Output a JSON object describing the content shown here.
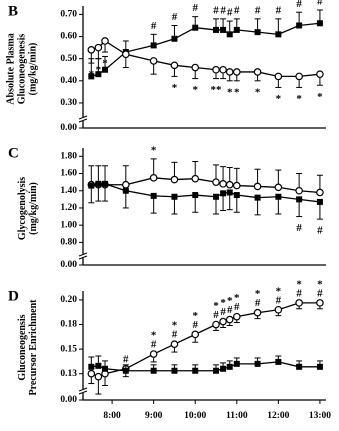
{
  "chart_data": [
    {
      "type": "line",
      "panel": "B",
      "ylabel": [
        "Absolute Plasma",
        "Gluconeogenesis",
        "(mg/kg/min)"
      ],
      "x": [
        7.5,
        7.67,
        7.83,
        8.33,
        9.0,
        9.5,
        10.0,
        10.5,
        10.67,
        10.83,
        11.0,
        11.5,
        12.0,
        12.5,
        13.0
      ],
      "xlim": [
        7.3,
        13.05
      ],
      "ylim": [
        0,
        0.72
      ],
      "axis_break": true,
      "yticks": [
        {
          "value": 0,
          "label": "0.00"
        },
        {
          "value": 0.3,
          "label": "0.30"
        },
        {
          "value": 0.4,
          "label": "0.40"
        },
        {
          "value": 0.5,
          "label": "0.50"
        },
        {
          "value": 0.6,
          "label": "0.60"
        },
        {
          "value": 0.7,
          "label": "0.70"
        }
      ],
      "series": [
        {
          "marker": "square",
          "color": "#000000",
          "error_direction": "up",
          "note_position": "above",
          "values": [
            0.42,
            0.43,
            0.45,
            0.53,
            0.56,
            0.59,
            0.64,
            0.63,
            0.63,
            0.61,
            0.63,
            0.62,
            0.61,
            0.65,
            0.66
          ],
          "errors": [
            0.08,
            0.07,
            0.06,
            0.05,
            0.05,
            0.06,
            0.05,
            0.05,
            0.05,
            0.06,
            0.05,
            0.06,
            0.07,
            0.06,
            0.06
          ],
          "notes": [
            null,
            null,
            null,
            null,
            "#",
            "#",
            "#",
            "#",
            "#",
            "#",
            "#",
            "#",
            "#",
            "#",
            "#"
          ]
        },
        {
          "marker": "circle",
          "color": "#000000",
          "error_direction": "down",
          "note_position": "below",
          "values": [
            0.54,
            0.55,
            0.58,
            0.52,
            0.49,
            0.47,
            0.46,
            0.45,
            0.45,
            0.44,
            0.44,
            0.44,
            0.42,
            0.42,
            0.43
          ],
          "errors": [
            0.06,
            0.05,
            0.05,
            0.06,
            0.06,
            0.05,
            0.05,
            0.04,
            0.04,
            0.04,
            0.04,
            0.04,
            0.05,
            0.05,
            0.05
          ],
          "notes": [
            "*",
            "*",
            "*",
            null,
            null,
            "*",
            "*",
            "**",
            null,
            "*",
            "*",
            "*",
            "*",
            "*",
            "*"
          ]
        }
      ]
    },
    {
      "type": "line",
      "panel": "C",
      "ylabel": [
        "Glycogenolysis",
        "(mg/kg/min)"
      ],
      "x": [
        7.5,
        7.67,
        7.83,
        8.33,
        9.0,
        9.5,
        10.0,
        10.5,
        10.67,
        10.83,
        11.0,
        11.5,
        12.0,
        12.5,
        13.0
      ],
      "xlim": [
        7.3,
        13.05
      ],
      "ylim": [
        0,
        1.85
      ],
      "axis_break": true,
      "yticks": [
        {
          "value": 0,
          "label": "0.00"
        },
        {
          "value": 0.8,
          "label": "0.80"
        },
        {
          "value": 1,
          "label": "1.00"
        },
        {
          "value": 1.2,
          "label": "1.20"
        },
        {
          "value": 1.4,
          "label": "1.40"
        },
        {
          "value": 1.6,
          "label": "1.60"
        },
        {
          "value": 1.8,
          "label": "1.80"
        }
      ],
      "series": [
        {
          "marker": "circle",
          "color": "#000000",
          "error_direction": "up",
          "note_position": "above",
          "values": [
            1.47,
            1.47,
            1.47,
            1.47,
            1.55,
            1.53,
            1.54,
            1.5,
            1.48,
            1.47,
            1.46,
            1.45,
            1.44,
            1.4,
            1.38
          ],
          "errors": [
            0.22,
            0.22,
            0.22,
            0.22,
            0.22,
            0.2,
            0.2,
            0.2,
            0.2,
            0.2,
            0.2,
            0.2,
            0.2,
            0.2,
            0.2
          ],
          "notes": [
            null,
            null,
            null,
            null,
            "*",
            null,
            null,
            null,
            null,
            null,
            null,
            null,
            null,
            null,
            null
          ]
        },
        {
          "marker": "square",
          "color": "#000000",
          "error_direction": "down",
          "note_position": "below",
          "values": [
            1.46,
            1.48,
            1.48,
            1.4,
            1.34,
            1.33,
            1.35,
            1.33,
            1.37,
            1.38,
            1.35,
            1.32,
            1.33,
            1.3,
            1.27
          ],
          "errors": [
            0.2,
            0.2,
            0.2,
            0.2,
            0.2,
            0.2,
            0.2,
            0.2,
            0.2,
            0.2,
            0.2,
            0.2,
            0.2,
            0.2,
            0.2
          ],
          "notes": [
            null,
            null,
            null,
            null,
            null,
            null,
            null,
            null,
            null,
            null,
            null,
            null,
            null,
            "#",
            "#"
          ]
        }
      ]
    },
    {
      "type": "line",
      "panel": "D",
      "ylabel": [
        "Gluconeogensis",
        "Precursor Enrichment"
      ],
      "x": [
        7.5,
        7.67,
        7.83,
        8.33,
        9.0,
        9.5,
        10.0,
        10.5,
        10.67,
        10.83,
        11.0,
        11.5,
        12.0,
        12.5,
        13.0
      ],
      "xlim": [
        7.3,
        13.05
      ],
      "xticks": [
        {
          "value": 8,
          "label": "8:00"
        },
        {
          "value": 9,
          "label": "9:00"
        },
        {
          "value": 10,
          "label": "10:00"
        },
        {
          "value": 11,
          "label": "11:00"
        },
        {
          "value": 12,
          "label": "12:00"
        },
        {
          "value": 13,
          "label": "13:00"
        }
      ],
      "ylim": [
        0,
        0.205
      ],
      "axis_break": true,
      "yticks": [
        {
          "value": 0,
          "label": "0.00"
        },
        {
          "value": 0.125,
          "label": "0.13"
        },
        {
          "value": 0.15,
          "label": "0.15"
        },
        {
          "value": 0.175,
          "label": "0.18"
        },
        {
          "value": 0.2,
          "label": "0.20"
        }
      ],
      "series": [
        {
          "marker": "circle",
          "color": "#000000",
          "error_direction": "down",
          "note_position": "above",
          "values": [
            0.125,
            0.122,
            0.125,
            0.13,
            0.145,
            0.155,
            0.165,
            0.175,
            0.178,
            0.18,
            0.183,
            0.187,
            0.19,
            0.197,
            0.197
          ],
          "errors": [
            0.01,
            0.01,
            0.012,
            0.008,
            0.008,
            0.008,
            0.008,
            0.006,
            0.006,
            0.006,
            0.006,
            0.006,
            0.006,
            0.006,
            0.006
          ],
          "notes": [
            null,
            null,
            null,
            null,
            "*",
            "*",
            "*",
            "*",
            "*",
            "*",
            "*",
            "*",
            "*",
            "*",
            "*"
          ],
          "sub_notes": [
            null,
            null,
            null,
            "#",
            "#",
            "#",
            "#",
            "#",
            "#",
            "#",
            "#",
            "#",
            "#",
            "#",
            "#"
          ]
        },
        {
          "marker": "square",
          "color": "#000000",
          "error_direction": "up",
          "note_position": "above",
          "values": [
            0.132,
            0.133,
            0.13,
            0.128,
            0.128,
            0.128,
            0.128,
            0.128,
            0.13,
            0.132,
            0.135,
            0.135,
            0.137,
            0.132,
            0.132
          ],
          "errors": [
            0.01,
            0.01,
            0.008,
            0.006,
            0.006,
            0.006,
            0.006,
            0.006,
            0.006,
            0.006,
            0.006,
            0.006,
            0.006,
            0.006,
            0.006
          ]
        }
      ]
    }
  ]
}
